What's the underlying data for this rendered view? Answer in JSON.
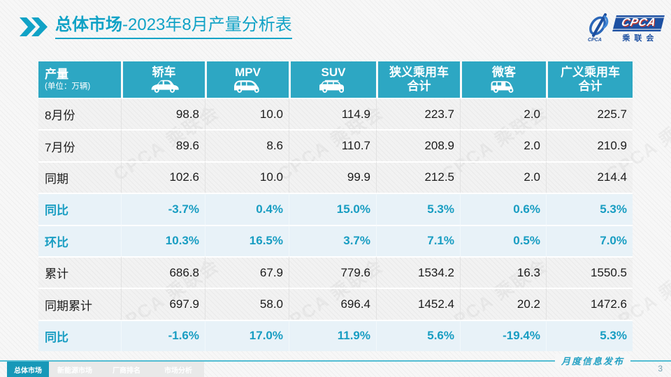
{
  "slide": {
    "title": {
      "main": "总体市场",
      "rest": "-2023年8月产量分析表"
    },
    "logo": {
      "text": "CPCA",
      "subtext": "乘联会"
    },
    "watermark": "CPCA 乘联会",
    "table": {
      "header": {
        "label": "产量",
        "unit": "(单位：万辆)",
        "columns": [
          {
            "label": "轿车",
            "icon": "sedan-icon"
          },
          {
            "label": "MPV",
            "icon": "mpv-icon"
          },
          {
            "label": "SUV",
            "icon": "suv-icon"
          },
          {
            "label": "狭义乘用车",
            "label2": "合计"
          },
          {
            "label": "微客",
            "icon": "microvan-icon"
          },
          {
            "label": "广义乘用车",
            "label2": "合计"
          }
        ]
      },
      "rows": [
        {
          "label": "8月份",
          "style": "normal",
          "values": [
            "98.8",
            "10.0",
            "114.9",
            "223.7",
            "2.0",
            "225.7"
          ]
        },
        {
          "label": "7月份",
          "style": "normal",
          "values": [
            "89.6",
            "8.6",
            "110.7",
            "208.9",
            "2.0",
            "210.9"
          ]
        },
        {
          "label": "同期",
          "style": "normal",
          "values": [
            "102.6",
            "10.0",
            "99.9",
            "212.5",
            "2.0",
            "214.4"
          ]
        },
        {
          "label": "同比",
          "style": "highlight",
          "values": [
            "-3.7%",
            "0.4%",
            "15.0%",
            "5.3%",
            "0.6%",
            "5.3%"
          ]
        },
        {
          "label": "环比",
          "style": "highlight",
          "values": [
            "10.3%",
            "16.5%",
            "3.7%",
            "7.1%",
            "0.5%",
            "7.0%"
          ]
        },
        {
          "label": "累计",
          "style": "normal",
          "values": [
            "686.8",
            "67.9",
            "779.6",
            "1534.2",
            "16.3",
            "1550.5"
          ]
        },
        {
          "label": "同期累计",
          "style": "normal",
          "values": [
            "697.9",
            "58.0",
            "696.4",
            "1452.4",
            "20.2",
            "1472.6"
          ]
        },
        {
          "label": "同比",
          "style": "highlight",
          "values": [
            "-1.6%",
            "17.0%",
            "11.9%",
            "5.6%",
            "-19.4%",
            "5.3%"
          ]
        }
      ]
    },
    "footer": {
      "tabs": [
        {
          "label": "总体市场",
          "active": true
        },
        {
          "label": "新能源市场",
          "active": false
        },
        {
          "label": "厂商排名",
          "active": false
        },
        {
          "label": "市场分析",
          "active": false
        }
      ],
      "caption": "月度信息发布",
      "page": "3"
    },
    "colors": {
      "accent": "#10a2c6",
      "header_bg": "#2da7c3",
      "highlight_bg": "#e8f2f8",
      "highlight_text": "#189dc2",
      "logo_blue": "#1d50a2",
      "footer_line": "#53bdd3"
    }
  }
}
